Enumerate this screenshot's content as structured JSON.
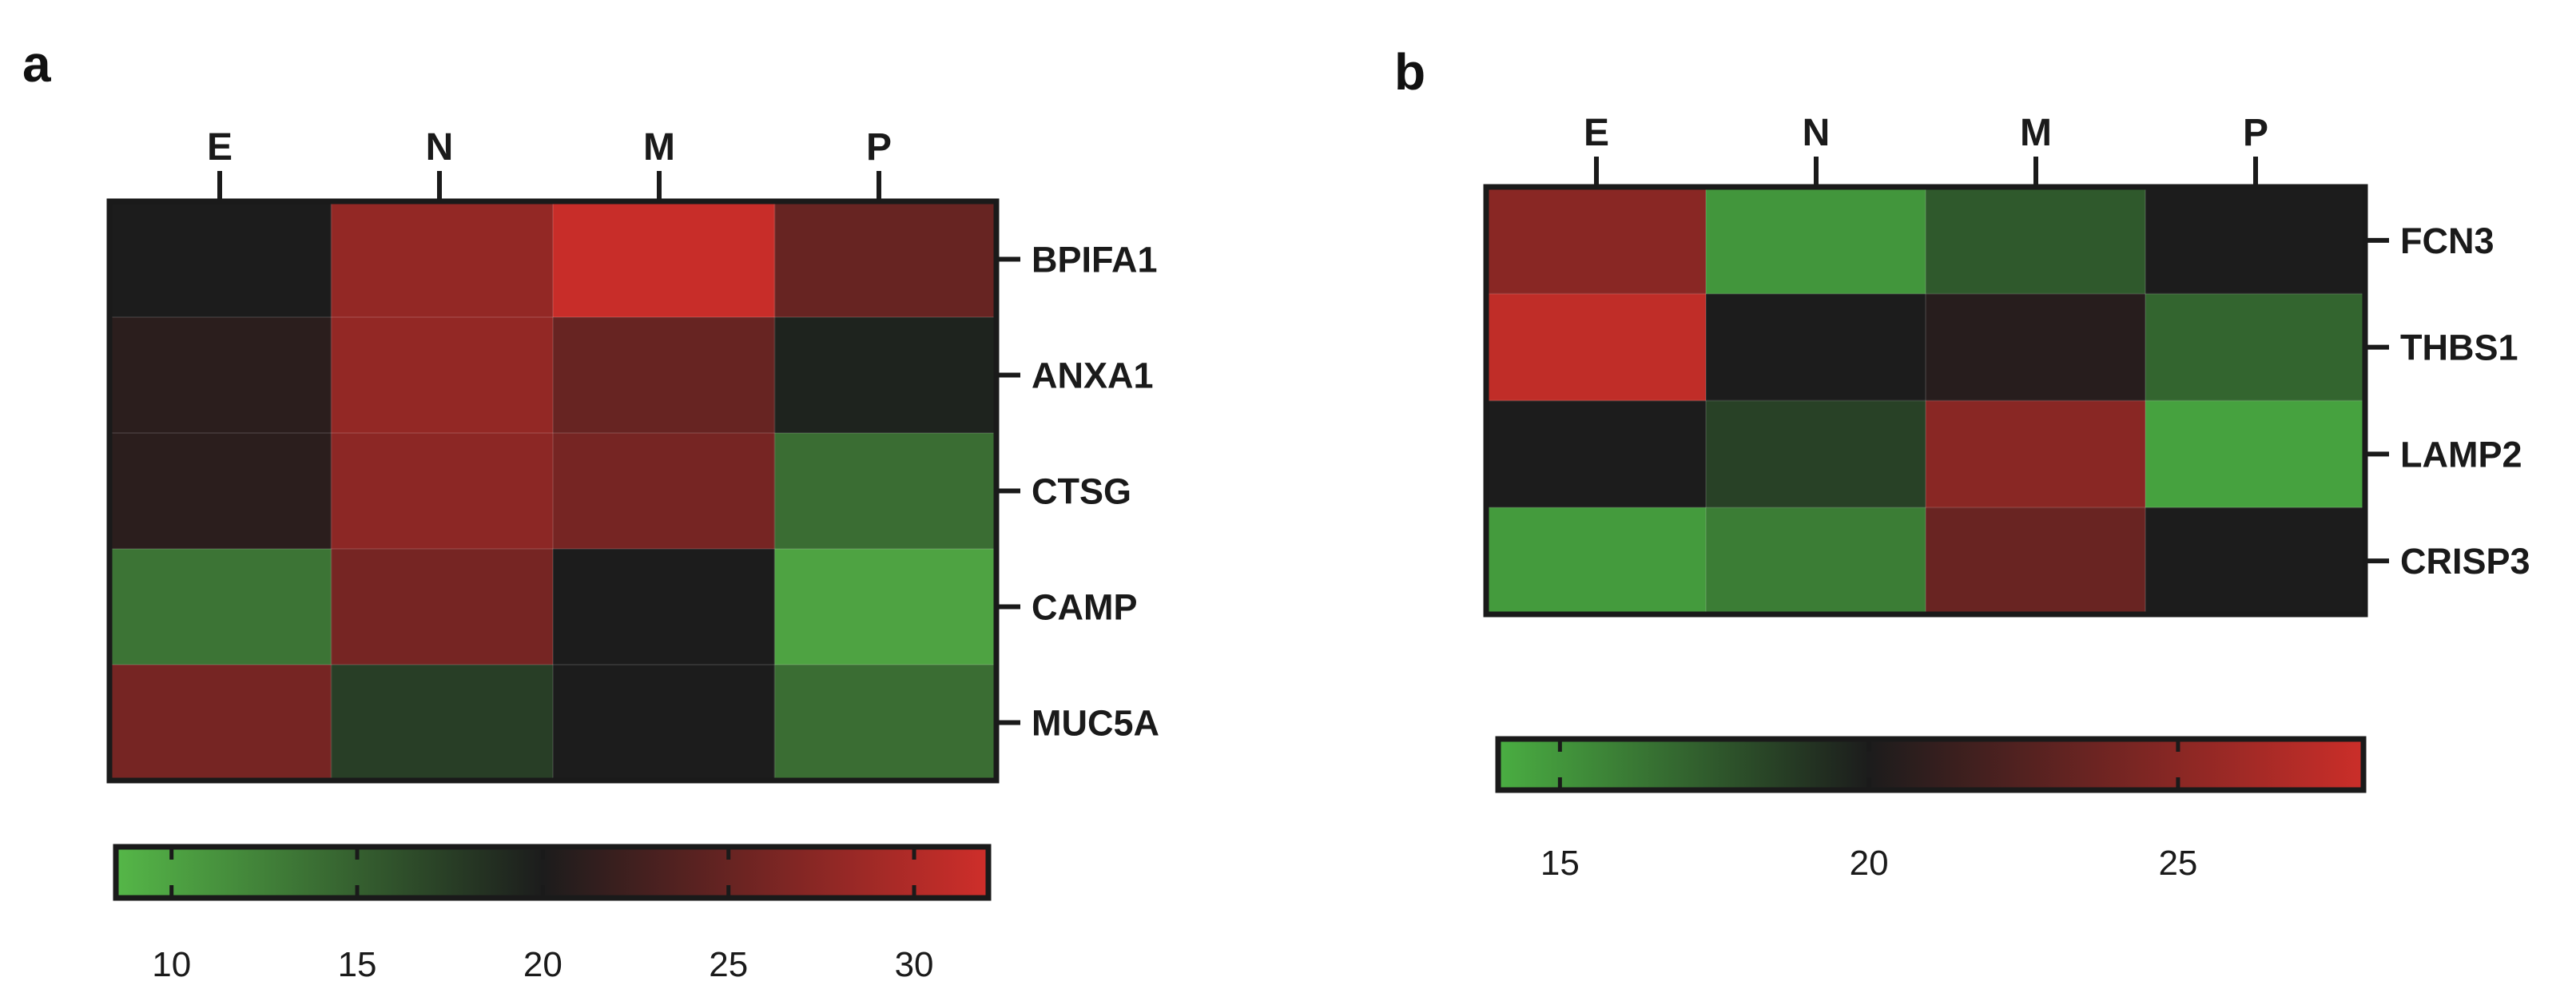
{
  "chart_data": [
    {
      "type": "heatmap",
      "panel": "a",
      "columns": [
        "E",
        "N",
        "M",
        "P"
      ],
      "rows": [
        "BPIFA1",
        "ANXA1",
        "CTSG",
        "CAMP",
        "MUC5A"
      ],
      "values": [
        [
          20.0,
          28.0,
          31.5,
          25.0
        ],
        [
          21.0,
          28.0,
          25.0,
          19.5
        ],
        [
          21.0,
          27.5,
          26.0,
          14.0
        ],
        [
          13.5,
          26.0,
          20.0,
          10.0
        ],
        [
          26.0,
          17.5,
          20.0,
          14.0
        ]
      ],
      "colorbar": {
        "range": [
          8.5,
          32
        ],
        "ticks": [
          10,
          15,
          20,
          25,
          30
        ]
      },
      "colors": {
        "low": "#55b748",
        "mid": "#1c1c1c",
        "high": "#cf2e2a"
      }
    },
    {
      "type": "heatmap",
      "panel": "b",
      "columns": [
        "E",
        "N",
        "M",
        "P"
      ],
      "rows": [
        "FCN3",
        "THBS1",
        "LAMP2",
        "CRISP3"
      ],
      "values": [
        [
          25.0,
          15.0,
          17.5,
          20.0
        ],
        [
          27.5,
          20.0,
          20.5,
          17.0
        ],
        [
          20.0,
          18.5,
          25.0,
          14.5
        ],
        [
          14.8,
          16.0,
          23.5,
          20.0
        ]
      ],
      "colorbar": {
        "range": [
          14,
          28
        ],
        "ticks": [
          15,
          20,
          25
        ]
      },
      "colors": {
        "low": "#4aae42",
        "mid": "#1c1c1c",
        "high": "#cb2e29"
      }
    }
  ]
}
